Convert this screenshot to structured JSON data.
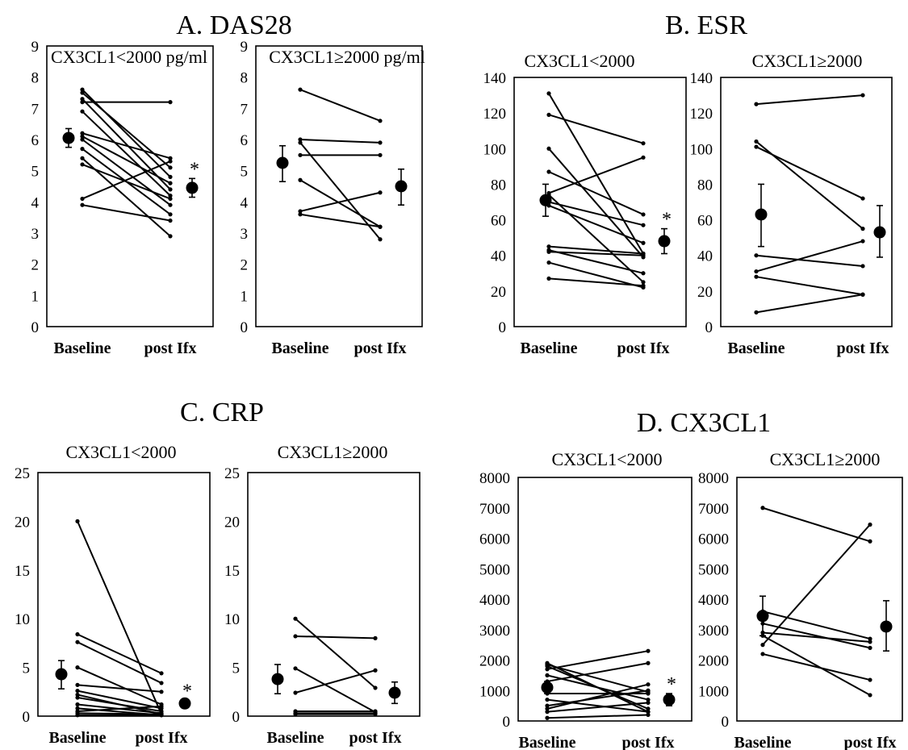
{
  "chart_data": [
    {
      "id": "A1",
      "type": "line",
      "group_title": "A. DAS28",
      "title": "CX3CL1<2000 pg/ml",
      "categories": [
        "Baseline",
        "post Ifx"
      ],
      "ylim": [
        0,
        9
      ],
      "yticks": [
        0,
        1,
        2,
        3,
        4,
        5,
        6,
        7,
        8,
        9
      ],
      "grid": false,
      "mean_side": "right",
      "significance": "*",
      "series": [
        {
          "values": [
            7.6,
            4.8
          ]
        },
        {
          "values": [
            7.5,
            5.1
          ]
        },
        {
          "values": [
            7.3,
            4.4
          ]
        },
        {
          "values": [
            7.2,
            7.2
          ]
        },
        {
          "values": [
            6.9,
            4.2
          ]
        },
        {
          "values": [
            6.2,
            5.4
          ]
        },
        {
          "values": [
            6.1,
            4.6
          ]
        },
        {
          "values": [
            6.0,
            3.9
          ]
        },
        {
          "values": [
            5.7,
            3.6
          ]
        },
        {
          "values": [
            5.4,
            2.9
          ]
        },
        {
          "values": [
            5.2,
            4.1
          ]
        },
        {
          "values": [
            4.1,
            5.3
          ]
        },
        {
          "values": [
            3.9,
            3.4
          ]
        }
      ],
      "mean_points": [
        {
          "x": "Baseline",
          "mean": 6.05,
          "err_low": 5.75,
          "err_high": 6.35
        },
        {
          "x": "post Ifx",
          "mean": 4.45,
          "err_low": 4.15,
          "err_high": 4.75
        }
      ]
    },
    {
      "id": "A2",
      "type": "line",
      "title": "CX3CL1≥2000 pg/ml",
      "categories": [
        "Baseline",
        "post Ifx"
      ],
      "ylim": [
        0,
        9
      ],
      "yticks": [
        0,
        1,
        2,
        3,
        4,
        5,
        6,
        7,
        8,
        9
      ],
      "grid": false,
      "mean_side": "outer",
      "series": [
        {
          "values": [
            7.6,
            6.6
          ]
        },
        {
          "values": [
            6.0,
            5.9
          ]
        },
        {
          "values": [
            5.9,
            2.8
          ]
        },
        {
          "values": [
            5.5,
            5.5
          ]
        },
        {
          "values": [
            4.7,
            3.2
          ]
        },
        {
          "values": [
            3.7,
            4.3
          ]
        },
        {
          "values": [
            3.6,
            3.2
          ]
        }
      ],
      "mean_points": [
        {
          "x": "Baseline",
          "mean": 5.25,
          "err_low": 4.65,
          "err_high": 5.8
        },
        {
          "x": "post Ifx",
          "mean": 4.5,
          "err_low": 3.9,
          "err_high": 5.05
        }
      ]
    },
    {
      "id": "B1",
      "type": "line",
      "group_title": "B. ESR",
      "title": "CX3CL1<2000",
      "categories": [
        "Baseline",
        "post Ifx"
      ],
      "ylim": [
        0,
        140
      ],
      "yticks": [
        0,
        20,
        40,
        60,
        80,
        100,
        120,
        140
      ],
      "grid": false,
      "mean_side": "right",
      "significance": "*",
      "series": [
        {
          "values": [
            131,
            41
          ]
        },
        {
          "values": [
            119,
            103
          ]
        },
        {
          "values": [
            100,
            39
          ]
        },
        {
          "values": [
            87,
            63
          ]
        },
        {
          "values": [
            75,
            95
          ]
        },
        {
          "values": [
            74,
            25
          ]
        },
        {
          "values": [
            70,
            57
          ]
        },
        {
          "values": [
            68,
            47
          ]
        },
        {
          "values": [
            45,
            41
          ]
        },
        {
          "values": [
            43,
            30
          ]
        },
        {
          "values": [
            42,
            40
          ]
        },
        {
          "values": [
            36,
            22
          ]
        },
        {
          "values": [
            27,
            23
          ]
        }
      ],
      "mean_points": [
        {
          "x": "Baseline",
          "mean": 71,
          "err_low": 62,
          "err_high": 80
        },
        {
          "x": "post Ifx",
          "mean": 48,
          "err_low": 41,
          "err_high": 55
        }
      ]
    },
    {
      "id": "B2",
      "type": "line",
      "title": "CX3CL1≥2000",
      "categories": [
        "Baseline",
        "post Ifx"
      ],
      "ylim": [
        0,
        140
      ],
      "yticks": [
        0,
        20,
        40,
        60,
        80,
        100,
        120,
        140
      ],
      "grid": false,
      "mean_side": "outer",
      "series": [
        {
          "values": [
            125,
            130
          ]
        },
        {
          "values": [
            104,
            55
          ]
        },
        {
          "values": [
            101,
            72
          ]
        },
        {
          "values": [
            40,
            34
          ]
        },
        {
          "values": [
            31,
            48
          ]
        },
        {
          "values": [
            28,
            18
          ]
        },
        {
          "values": [
            8,
            18
          ]
        }
      ],
      "mean_points": [
        {
          "x": "Baseline",
          "mean": 63,
          "err_low": 45,
          "err_high": 80
        },
        {
          "x": "post Ifx",
          "mean": 53,
          "err_low": 39,
          "err_high": 68
        }
      ]
    },
    {
      "id": "C1",
      "type": "line",
      "group_title": "C. CRP",
      "title": "CX3CL1<2000",
      "categories": [
        "Baseline",
        "post Ifx"
      ],
      "ylim": [
        0,
        25
      ],
      "yticks": [
        0,
        5,
        10,
        15,
        20,
        25
      ],
      "grid": false,
      "mean_side": "right",
      "significance": "*",
      "series": [
        {
          "values": [
            20,
            0.2
          ]
        },
        {
          "values": [
            8.4,
            4.4
          ]
        },
        {
          "values": [
            7.6,
            3.4
          ]
        },
        {
          "values": [
            5.0,
            1.2
          ]
        },
        {
          "values": [
            3.2,
            2.5
          ]
        },
        {
          "values": [
            2.6,
            0.8
          ]
        },
        {
          "values": [
            2.2,
            0.2
          ]
        },
        {
          "values": [
            1.9,
            0.5
          ]
        },
        {
          "values": [
            1.2,
            0.3
          ]
        },
        {
          "values": [
            0.8,
            0.1
          ]
        },
        {
          "values": [
            0.5,
            1.0
          ]
        },
        {
          "values": [
            0.3,
            0.2
          ]
        },
        {
          "values": [
            0.1,
            0.1
          ]
        }
      ],
      "mean_points": [
        {
          "x": "Baseline",
          "mean": 4.3,
          "err_low": 2.8,
          "err_high": 5.7
        },
        {
          "x": "post Ifx",
          "mean": 1.3,
          "err_low": 1.0,
          "err_high": 1.6
        }
      ]
    },
    {
      "id": "C2",
      "type": "line",
      "title": "CX3CL1≥2000",
      "categories": [
        "Baseline",
        "post Ifx"
      ],
      "ylim": [
        0,
        25
      ],
      "yticks": [
        0,
        5,
        10,
        15,
        20,
        25
      ],
      "grid": false,
      "mean_side": "outer",
      "series": [
        {
          "values": [
            10.0,
            2.9
          ]
        },
        {
          "values": [
            8.2,
            8.0
          ]
        },
        {
          "values": [
            4.9,
            0.4
          ]
        },
        {
          "values": [
            2.4,
            4.7
          ]
        },
        {
          "values": [
            0.5,
            0.5
          ]
        },
        {
          "values": [
            0.3,
            0.3
          ]
        },
        {
          "values": [
            0.2,
            0.2
          ]
        }
      ],
      "mean_points": [
        {
          "x": "Baseline",
          "mean": 3.8,
          "err_low": 2.3,
          "err_high": 5.3
        },
        {
          "x": "post Ifx",
          "mean": 2.4,
          "err_low": 1.3,
          "err_high": 3.5
        }
      ]
    },
    {
      "id": "D1",
      "type": "line",
      "group_title": "D. CX3CL1",
      "title": "CX3CL1<2000",
      "categories": [
        "Baseline",
        "post Ifx"
      ],
      "ylim": [
        0,
        8000
      ],
      "yticks": [
        0,
        1000,
        2000,
        3000,
        4000,
        5000,
        6000,
        7000,
        8000
      ],
      "grid": false,
      "mean_side": "right",
      "significance": "*",
      "series": [
        {
          "values": [
            1900,
            300
          ]
        },
        {
          "values": [
            1850,
            950
          ]
        },
        {
          "values": [
            1800,
            400
          ]
        },
        {
          "values": [
            1700,
            2300
          ]
        },
        {
          "values": [
            1500,
            700
          ]
        },
        {
          "values": [
            1300,
            1900
          ]
        },
        {
          "values": [
            900,
            900
          ]
        },
        {
          "values": [
            700,
            300
          ]
        },
        {
          "values": [
            500,
            1000
          ]
        },
        {
          "values": [
            400,
            1200
          ]
        },
        {
          "values": [
            300,
            600
          ]
        },
        {
          "values": [
            100,
            200
          ]
        }
      ],
      "mean_points": [
        {
          "x": "Baseline",
          "mean": 1100,
          "err_low": 900,
          "err_high": 1300
        },
        {
          "x": "post Ifx",
          "mean": 700,
          "err_low": 500,
          "err_high": 900
        }
      ]
    },
    {
      "id": "D2",
      "type": "line",
      "title": "CX3CL1≥2000",
      "categories": [
        "Baseline",
        "post Ifx"
      ],
      "ylim": [
        0,
        8000
      ],
      "yticks": [
        0,
        1000,
        2000,
        3000,
        4000,
        5000,
        6000,
        7000,
        8000
      ],
      "grid": false,
      "mean_side": "outer",
      "series": [
        {
          "values": [
            7000,
            5900
          ]
        },
        {
          "values": [
            3600,
            2700
          ]
        },
        {
          "values": [
            3200,
            2400
          ]
        },
        {
          "values": [
            2900,
            2600
          ]
        },
        {
          "values": [
            2800,
            850
          ]
        },
        {
          "values": [
            2500,
            6450
          ]
        },
        {
          "values": [
            2200,
            1350
          ]
        }
      ],
      "mean_points": [
        {
          "x": "Baseline",
          "mean": 3450,
          "err_low": 2800,
          "err_high": 4100
        },
        {
          "x": "post Ifx",
          "mean": 3100,
          "err_low": 2300,
          "err_high": 3950
        }
      ]
    }
  ]
}
